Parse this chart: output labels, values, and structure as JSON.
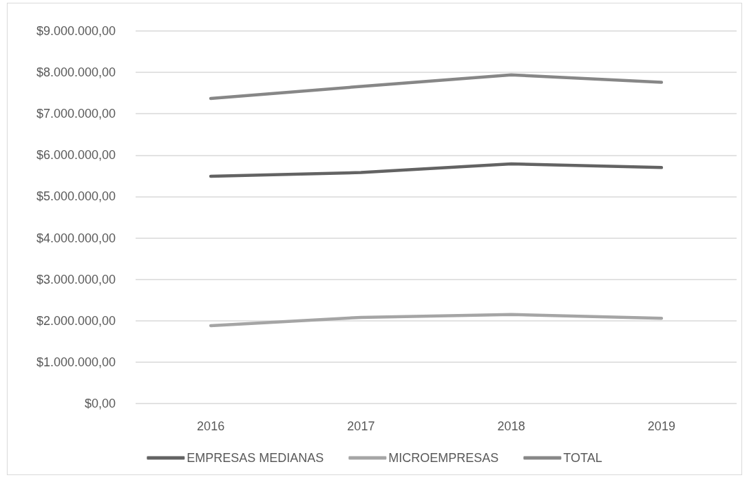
{
  "chart_data": {
    "type": "line",
    "categories": [
      "2016",
      "2017",
      "2018",
      "2019"
    ],
    "series": [
      {
        "name": "EMPRESAS MEDIANAS",
        "color": "#636363",
        "values": [
          5490000,
          5580000,
          5790000,
          5700000
        ]
      },
      {
        "name": "MICROEMPRESAS",
        "color": "#a5a5a5",
        "values": [
          1880000,
          2080000,
          2150000,
          2060000
        ]
      },
      {
        "name": "TOTAL",
        "color": "#878787",
        "values": [
          7370000,
          7660000,
          7940000,
          7760000
        ]
      }
    ],
    "ylim": [
      0,
      9000000
    ],
    "yticks": [
      {
        "value": 0,
        "label": "$0,00"
      },
      {
        "value": 1000000,
        "label": "$1.000.000,00"
      },
      {
        "value": 2000000,
        "label": "$2.000.000,00"
      },
      {
        "value": 3000000,
        "label": "$3.000.000,00"
      },
      {
        "value": 4000000,
        "label": "$4.000.000,00"
      },
      {
        "value": 5000000,
        "label": "$5.000.000,00"
      },
      {
        "value": 6000000,
        "label": "$6.000.000,00"
      },
      {
        "value": 7000000,
        "label": "$7.000.000,00"
      },
      {
        "value": 8000000,
        "label": "$8.000.000,00"
      },
      {
        "value": 9000000,
        "label": "$9.000.000,00"
      }
    ],
    "grid": "y",
    "legend": "bottom",
    "marker": "none"
  }
}
